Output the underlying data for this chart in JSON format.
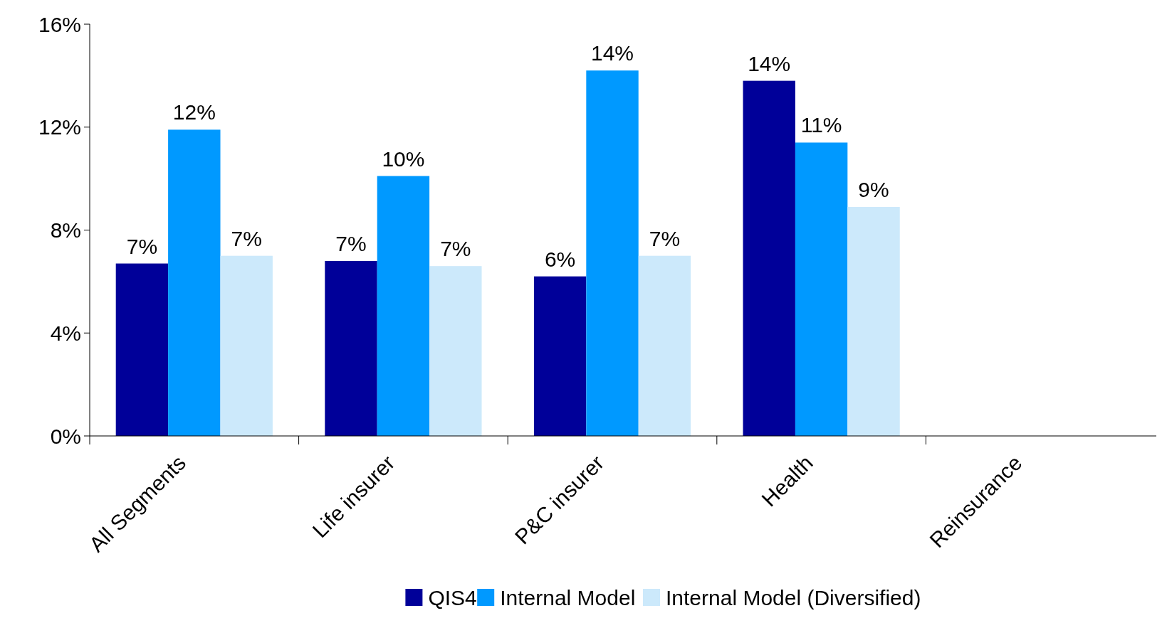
{
  "chart_data": {
    "type": "bar",
    "categories": [
      "All Segments",
      "Life insurer",
      "P&C insurer",
      "Health",
      "Reinsurance"
    ],
    "series": [
      {
        "name": "QIS4",
        "color": "#000099",
        "values": [
          6.7,
          6.8,
          6.2,
          13.8,
          null
        ],
        "value_labels": [
          "7%",
          "7%",
          "6%",
          "14%",
          null
        ]
      },
      {
        "name": "Internal Model",
        "color": "#0099ff",
        "values": [
          11.9,
          10.1,
          14.2,
          11.4,
          null
        ],
        "value_labels": [
          "12%",
          "10%",
          "14%",
          "11%",
          null
        ]
      },
      {
        "name": "Internal Model (Diversified)",
        "color": "#cce9fb",
        "values": [
          7.0,
          6.6,
          7.0,
          8.9,
          null
        ],
        "value_labels": [
          "7%",
          "7%",
          "7%",
          "9%",
          null
        ]
      }
    ],
    "ylim": [
      0,
      16
    ],
    "yticks": [
      {
        "value": 0,
        "label": "0%"
      },
      {
        "value": 4,
        "label": "4%"
      },
      {
        "value": 8,
        "label": "8%"
      },
      {
        "value": 12,
        "label": "12%"
      },
      {
        "value": 16,
        "label": "16%"
      }
    ],
    "grid": false,
    "legend": "bottom"
  }
}
